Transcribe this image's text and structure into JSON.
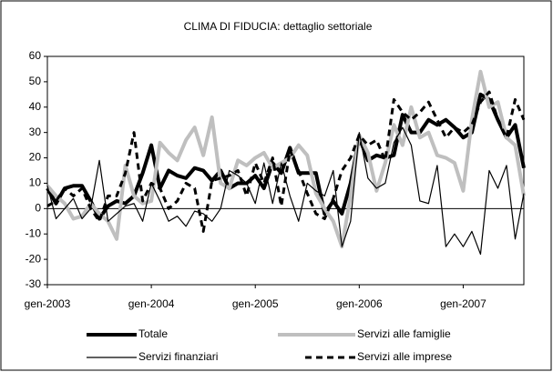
{
  "chart_data": {
    "type": "line",
    "title": "CLIMA DI FIDUCIA: dettaglio settoriale",
    "categories": [
      "gen-2003",
      null,
      null,
      null,
      null,
      null,
      null,
      null,
      null,
      null,
      null,
      null,
      "gen-2004",
      null,
      null,
      null,
      null,
      null,
      null,
      null,
      null,
      null,
      null,
      null,
      "gen-2005",
      null,
      null,
      null,
      null,
      null,
      null,
      null,
      null,
      null,
      null,
      null,
      "gen-2006",
      null,
      null,
      null,
      null,
      null,
      null,
      null,
      null,
      null,
      null,
      null,
      "gen-2007",
      null,
      null,
      null,
      null,
      null,
      null,
      null
    ],
    "series": [
      {
        "name": "Totale",
        "color": "#000000",
        "line_width": 4,
        "line_style": "solid",
        "values": [
          8,
          2,
          8,
          9,
          9,
          3,
          -4,
          1,
          3,
          2,
          5,
          14,
          25,
          8,
          15,
          13,
          12,
          16,
          15,
          11,
          15,
          8,
          10,
          10,
          13,
          8,
          18,
          14,
          24,
          14,
          14,
          14,
          -2,
          3,
          -2,
          10,
          28,
          19,
          21,
          20,
          21,
          37,
          30,
          30,
          35,
          33,
          35,
          32,
          28,
          30,
          45,
          43,
          35,
          28,
          33,
          16
        ]
      },
      {
        "name": "Servizi alle famiglie",
        "color": "#bfbfbf",
        "line_width": 4,
        "line_style": "solid",
        "values": [
          9,
          5,
          2,
          -4,
          -3,
          2,
          -2,
          -5,
          -12,
          17,
          5,
          2,
          3,
          26,
          22,
          19,
          27,
          32,
          21,
          36,
          10,
          8,
          19,
          17,
          20,
          22,
          16,
          18,
          20,
          25,
          21,
          6,
          0,
          -5,
          -15,
          5,
          29,
          22,
          7,
          18,
          33,
          25,
          40,
          28,
          30,
          21,
          20,
          18,
          7,
          35,
          54,
          40,
          42,
          28,
          25,
          5
        ]
      },
      {
        "name": "Servizi finanziari",
        "color": "#000000",
        "line_width": 1.2,
        "line_style": "solid",
        "values": [
          9,
          -4,
          0,
          4,
          -4,
          0,
          19,
          -5,
          -2,
          1,
          2,
          -5,
          10,
          3,
          -5,
          -3,
          -7,
          -1,
          -2,
          -5,
          0,
          15,
          13,
          10,
          2,
          18,
          2,
          18,
          5,
          -5,
          10,
          7,
          5,
          15,
          -15,
          -5,
          30,
          12,
          8,
          10,
          26,
          32,
          25,
          3,
          2,
          17,
          -15,
          -10,
          -15,
          -9,
          -18,
          15,
          8,
          17,
          -12,
          6
        ]
      },
      {
        "name": "Servizi alle imprese",
        "color": "#000000",
        "line_width": 3,
        "line_style": "dashed",
        "values": [
          1,
          3,
          8,
          5,
          8,
          0,
          -5,
          5,
          5,
          14,
          30,
          3,
          10,
          8,
          0,
          3,
          10,
          8,
          -9,
          11,
          12,
          13,
          15,
          5,
          18,
          10,
          20,
          1,
          23,
          15,
          6,
          -2,
          -4,
          4,
          15,
          20,
          29,
          25,
          27,
          19,
          43,
          38,
          35,
          38,
          42,
          35,
          28,
          32,
          30,
          33,
          42,
          46,
          35,
          28,
          43,
          35
        ]
      }
    ],
    "ylim": [
      -30,
      60
    ],
    "yticks": [
      -30,
      -20,
      -10,
      0,
      10,
      20,
      30,
      40,
      50,
      60
    ]
  }
}
